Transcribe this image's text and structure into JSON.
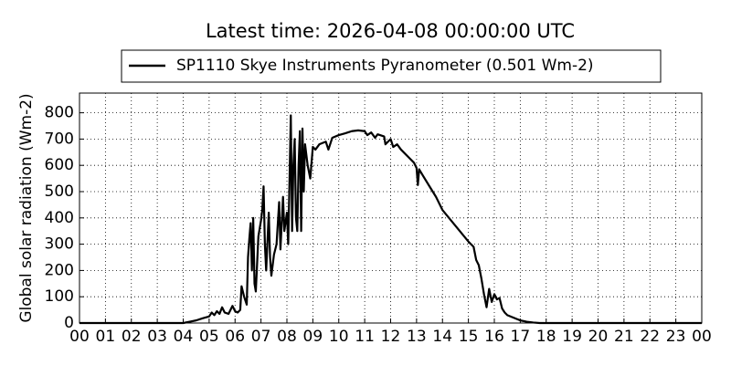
{
  "chart_data": {
    "type": "line",
    "title": "Latest time: 2026-04-08 00:00:00 UTC",
    "ylabel": "Global solar radiation (Wm-2)",
    "grid": true,
    "legend": "upper center",
    "xlim": [
      0,
      24
    ],
    "ylim": [
      0,
      875
    ],
    "xticks": [
      {
        "value": 0,
        "label": "00"
      },
      {
        "value": 1,
        "label": "01"
      },
      {
        "value": 2,
        "label": "02"
      },
      {
        "value": 3,
        "label": "03"
      },
      {
        "value": 4,
        "label": "04"
      },
      {
        "value": 5,
        "label": "05"
      },
      {
        "value": 6,
        "label": "06"
      },
      {
        "value": 7,
        "label": "07"
      },
      {
        "value": 8,
        "label": "08"
      },
      {
        "value": 9,
        "label": "09"
      },
      {
        "value": 10,
        "label": "10"
      },
      {
        "value": 11,
        "label": "11"
      },
      {
        "value": 12,
        "label": "12"
      },
      {
        "value": 13,
        "label": "13"
      },
      {
        "value": 14,
        "label": "14"
      },
      {
        "value": 15,
        "label": "15"
      },
      {
        "value": 16,
        "label": "16"
      },
      {
        "value": 17,
        "label": "17"
      },
      {
        "value": 18,
        "label": "18"
      },
      {
        "value": 19,
        "label": "19"
      },
      {
        "value": 20,
        "label": "20"
      },
      {
        "value": 21,
        "label": "21"
      },
      {
        "value": 22,
        "label": "22"
      },
      {
        "value": 23,
        "label": "23"
      },
      {
        "value": 24,
        "label": "00"
      }
    ],
    "yticks": [
      0,
      100,
      200,
      300,
      400,
      500,
      600,
      700,
      800
    ],
    "x": [
      0,
      1,
      2,
      3,
      4,
      4.25,
      4.5,
      4.75,
      5,
      5.1,
      5.2,
      5.3,
      5.4,
      5.5,
      5.6,
      5.75,
      5.9,
      6,
      6.1,
      6.2,
      6.25,
      6.35,
      6.45,
      6.5,
      6.55,
      6.6,
      6.65,
      6.7,
      6.75,
      6.8,
      6.9,
      7,
      7.05,
      7.1,
      7.15,
      7.2,
      7.3,
      7.35,
      7.4,
      7.5,
      7.6,
      7.7,
      7.75,
      7.85,
      7.9,
      8,
      8.05,
      8.1,
      8.15,
      8.2,
      8.25,
      8.3,
      8.35,
      8.4,
      8.45,
      8.5,
      8.55,
      8.6,
      8.65,
      8.7,
      8.8,
      8.9,
      9,
      9.1,
      9.25,
      9.5,
      9.6,
      9.75,
      10,
      10.25,
      10.5,
      10.75,
      11,
      11.1,
      11.25,
      11.4,
      11.5,
      11.75,
      11.8,
      12,
      12.1,
      12.25,
      12.4,
      12.5,
      12.75,
      12.9,
      13,
      13.05,
      13.1,
      13.25,
      13.5,
      13.75,
      14,
      14.5,
      15,
      15.2,
      15.3,
      15.4,
      15.5,
      15.6,
      15.7,
      15.8,
      15.9,
      16,
      16.1,
      16.2,
      16.3,
      16.4,
      16.5,
      16.75,
      17,
      17.25,
      17.5,
      17.75,
      18,
      19,
      20,
      21,
      22,
      23,
      24
    ],
    "series": [
      {
        "name": "SP1110 Skye Instruments Pyranometer (0.501 Wm-2)",
        "color": "#000000",
        "values": [
          0,
          0,
          0,
          0,
          0,
          5,
          10,
          18,
          25,
          40,
          30,
          45,
          35,
          60,
          40,
          35,
          65,
          45,
          40,
          50,
          140,
          100,
          70,
          250,
          320,
          380,
          200,
          400,
          150,
          120,
          330,
          390,
          430,
          520,
          300,
          200,
          420,
          250,
          180,
          260,
          300,
          460,
          280,
          480,
          350,
          420,
          300,
          540,
          790,
          350,
          600,
          700,
          400,
          350,
          600,
          730,
          350,
          740,
          500,
          680,
          600,
          550,
          670,
          660,
          680,
          690,
          660,
          705,
          715,
          722,
          730,
          733,
          730,
          715,
          725,
          705,
          718,
          710,
          680,
          700,
          670,
          680,
          660,
          650,
          625,
          610,
          590,
          525,
          585,
          560,
          520,
          480,
          430,
          370,
          310,
          290,
          240,
          220,
          170,
          110,
          60,
          130,
          80,
          110,
          90,
          95,
          55,
          40,
          30,
          20,
          10,
          5,
          2,
          0,
          0,
          0,
          0,
          0,
          0,
          0,
          0
        ]
      }
    ]
  }
}
